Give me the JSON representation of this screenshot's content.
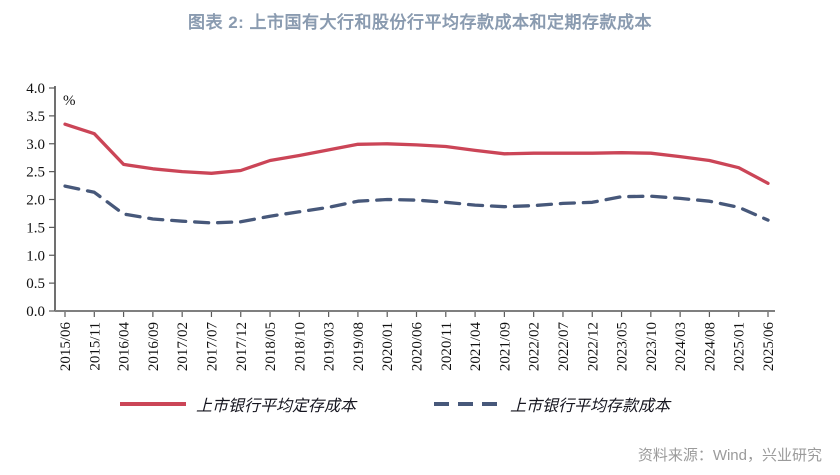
{
  "page": {
    "source": "资料来源：Wind，兴业研究",
    "colors": {
      "title_text": "#8A9BB0",
      "source_text": "#9B9B9B",
      "axis_y": "#404040",
      "axis_x": "#7F7F7F",
      "tick": "#595959",
      "tick_label": "#111111"
    }
  },
  "chart_data": {
    "type": "line",
    "title": "图表 2:  上市国有大行和股份行平均存款成本和定期存款成本",
    "unit_label": "%",
    "ylabel": "",
    "xlabel": "",
    "ylim": [
      0.0,
      4.0
    ],
    "ytick_step": 0.5,
    "yticks_top_to_bottom": [
      "4.0",
      "3.5",
      "3.0",
      "2.5",
      "2.0",
      "1.5",
      "1.0",
      "0.5",
      "0.0"
    ],
    "grid": false,
    "legend_position": "bottom",
    "x": [
      "2015/06",
      "2015/11",
      "2016/04",
      "2016/09",
      "2017/02",
      "2017/07",
      "2017/12",
      "2018/05",
      "2018/10",
      "2019/03",
      "2019/08",
      "2020/01",
      "2020/06",
      "2020/11",
      "2021/04",
      "2021/09",
      "2022/02",
      "2022/07",
      "2022/12",
      "2023/05",
      "2023/10",
      "2024/03",
      "2024/08",
      "2025/01",
      "2025/06"
    ],
    "series": [
      {
        "name": "上市银行平均定存成本",
        "style": "solid",
        "color": "#CB4557",
        "values": [
          3.35,
          3.18,
          2.63,
          2.55,
          2.5,
          2.47,
          2.52,
          2.7,
          2.79,
          2.89,
          2.99,
          3.0,
          2.98,
          2.95,
          2.88,
          2.82,
          2.83,
          2.83,
          2.83,
          2.84,
          2.83,
          2.77,
          2.7,
          2.57,
          2.29
        ]
      },
      {
        "name": "上市银行平均存款成本",
        "style": "dashed",
        "color": "#47587A",
        "values": [
          2.24,
          2.13,
          1.74,
          1.65,
          1.61,
          1.58,
          1.6,
          1.7,
          1.78,
          1.86,
          1.97,
          2.0,
          1.99,
          1.95,
          1.9,
          1.87,
          1.89,
          1.93,
          1.95,
          2.05,
          2.06,
          2.02,
          1.97,
          1.86,
          1.63
        ]
      }
    ]
  }
}
